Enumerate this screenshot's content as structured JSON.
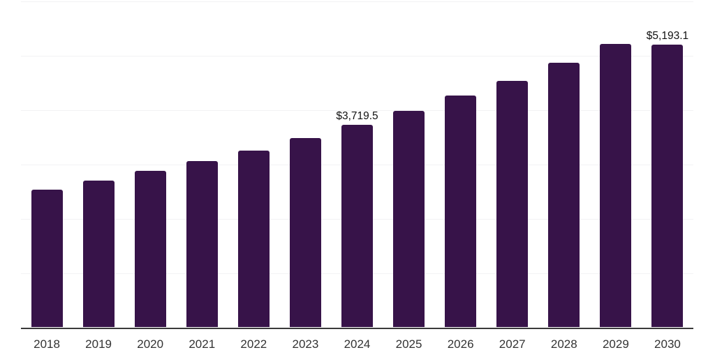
{
  "chart": {
    "background_color": "#ffffff",
    "bar_color": "#371349",
    "axis_color": "#3a3a3a",
    "grid_color": "#f2f2f4",
    "value_label_color": "#111111",
    "tick_label_color": "#333333"
  },
  "chart_data": {
    "type": "bar",
    "title": "",
    "xlabel": "",
    "ylabel": "",
    "categories": [
      "2018",
      "2019",
      "2020",
      "2021",
      "2022",
      "2023",
      "2024",
      "2025",
      "2026",
      "2027",
      "2028",
      "2029",
      "2030"
    ],
    "values": [
      2535,
      2705,
      2880,
      3060,
      3255,
      3475,
      3719.5,
      3985,
      4260,
      4535,
      4870,
      5210,
      5193.1
    ],
    "ylim": [
      0,
      6000
    ],
    "grid_step": 1000,
    "grid": "horizontal-only",
    "legend_position": "none",
    "annotations": [
      {
        "category": "2024",
        "text": "$3,719.5"
      },
      {
        "category": "2030",
        "text": "$5,193.1"
      }
    ]
  }
}
